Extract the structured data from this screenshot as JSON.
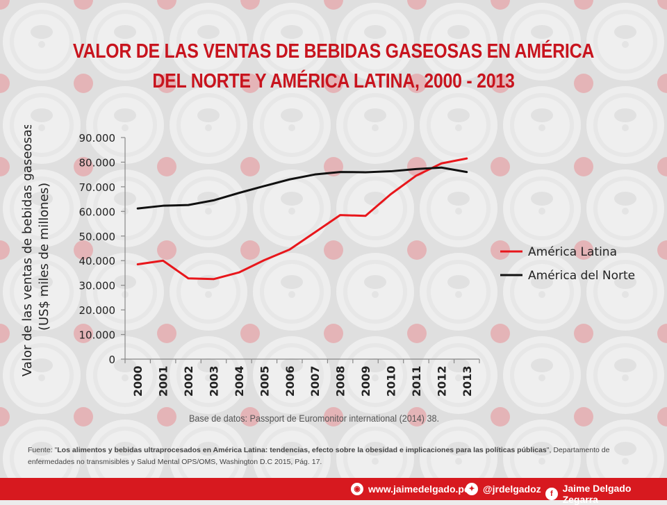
{
  "title": {
    "line1": "VALOR DE LAS VENTAS DE BEBIDAS GASEOSAS EN AMÉRICA",
    "line2": "DEL NORTE Y AMÉRICA LATINA, 2000 - 2013"
  },
  "chart_data": {
    "type": "line",
    "title": "",
    "xlabel": "",
    "ylabel_line1": "Valor de las ventas de bebidas gaseosas",
    "ylabel_line2": "(US$ miles de millones)",
    "ylim": [
      0,
      90000
    ],
    "yticks": [
      0,
      10000,
      20000,
      30000,
      40000,
      50000,
      60000,
      70000,
      80000,
      90000
    ],
    "ytick_labels": [
      "0",
      "10.000",
      "20.000",
      "30.000",
      "40.000",
      "50.000",
      "60.000",
      "70.000",
      "80.000",
      "90.000"
    ],
    "x": [
      "2000",
      "2001",
      "2002",
      "2003",
      "2004",
      "2005",
      "2006",
      "2007",
      "2008",
      "2009",
      "2010",
      "2011",
      "2012",
      "2013"
    ],
    "grid": false,
    "legend_position": "right",
    "series": [
      {
        "name": "América Latina",
        "color": "#e8161b",
        "values": [
          38500,
          40000,
          32800,
          32500,
          35200,
          40200,
          44500,
          51500,
          58500,
          58200,
          67000,
          74500,
          79500,
          81500
        ]
      },
      {
        "name": "América del Norte",
        "color": "#111111",
        "values": [
          61200,
          62300,
          62600,
          64500,
          67500,
          70300,
          73000,
          75000,
          76000,
          75900,
          76300,
          77200,
          77800,
          76000
        ]
      }
    ]
  },
  "source": "Base de datos:  Passport de Euromonitor international (2014) 38.",
  "footnote": {
    "prefix": "Fuente:  \"",
    "bold": "Los alimentos y bebidas ultraprocesados en América Latina: tendencias, efecto sobre la obesidad e implicaciones para las políticas públicas",
    "suffix": "\", Departamento de enfermedades no transmisibles y Salud Mental OPS/OMS, Washington D.C 2015, Pág. 17."
  },
  "footer": {
    "website": "www.jaimedelgado.pe",
    "twitter": "@jrdelgadoz",
    "facebook": "Jaime Delgado Zegarra",
    "website_icon": "globe-icon",
    "twitter_icon": "twitter-icon",
    "facebook_icon": "facebook-icon"
  }
}
